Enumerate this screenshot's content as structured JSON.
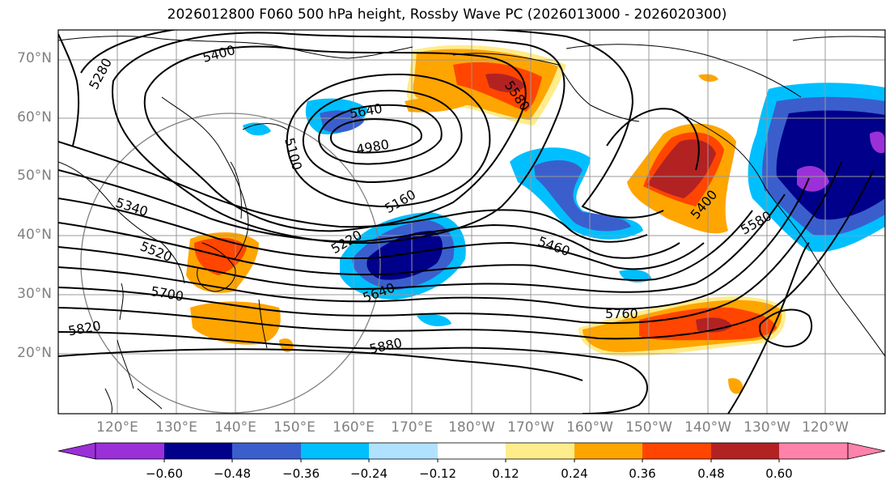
{
  "title": "2026012800 F060 500 hPa height, Rossby Wave PC (2026013000 - 2026020300)",
  "lat_labels": [
    "70°N",
    "60°N",
    "50°N",
    "40°N",
    "30°N",
    "20°N"
  ],
  "lon_labels": [
    "120°E",
    "130°E",
    "140°E",
    "150°E",
    "160°E",
    "170°E",
    "180°W",
    "170°W",
    "160°W",
    "150°W",
    "140°W",
    "130°W",
    "120°W"
  ],
  "contour_labels": [
    "5280",
    "5400",
    "5640",
    "5100",
    "4980",
    "5160",
    "5220",
    "5340",
    "5520",
    "5700",
    "5820",
    "5640",
    "5880",
    "5460",
    "5760",
    "5580",
    "5400",
    "5580"
  ],
  "colorbar": {
    "ticks": [
      "−0.60",
      "−0.48",
      "−0.36",
      "−0.24",
      "−0.12",
      "0.12",
      "0.24",
      "0.36",
      "0.48",
      "0.60"
    ],
    "colors": [
      "#9b30d9",
      "#00008b",
      "#3a5fcd",
      "#00bfff",
      "#b0e2ff",
      "#ffffff",
      "#ffec8b",
      "#ffa500",
      "#ff4500",
      "#b22222",
      "#ff82ab"
    ]
  },
  "anomaly_colors": {
    "strong_neg": "#00008b",
    "mid_neg": "#3a5fcd",
    "weak_neg": "#00bfff",
    "weakest_neg": "#b0e2ff",
    "weakest_pos": "#ffec8b",
    "weak_pos": "#ffa500",
    "mid_pos": "#ff4500",
    "strong_pos": "#b22222",
    "extreme_neg": "#9b30d9"
  }
}
